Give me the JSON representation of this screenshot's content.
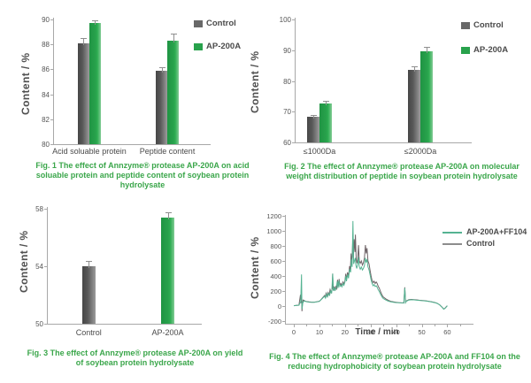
{
  "page": {
    "background": "#ffffff"
  },
  "colors": {
    "caption_green": "#3aa64a",
    "control_bar_dark": "#474747",
    "control_bar_light": "#9c9c9c",
    "ap200a_green": "#28a24c",
    "ap200a_green_light": "#83cb95",
    "legend_control_gray": "#686868",
    "teal_line": "#55b392",
    "control_line": "#6e6367",
    "axis_gray": "#a8a8a8",
    "error_bar_gray": "#8f8f8f"
  },
  "chart_data": [
    {
      "type": "bar",
      "title": "",
      "ylabel": "Content / %",
      "xlabel": "",
      "ylim": [
        80,
        90
      ],
      "yticks": [
        80,
        82,
        84,
        86,
        88,
        90
      ],
      "categories": [
        "Acid soluable protein",
        "Peptide content"
      ],
      "series": [
        {
          "name": "Control",
          "values": [
            88.1,
            85.9
          ],
          "errors": [
            0.4,
            0.3
          ]
        },
        {
          "name": "AP-200A",
          "values": [
            89.7,
            88.3
          ],
          "errors": [
            0.2,
            0.55
          ]
        }
      ],
      "legend": [
        {
          "label": "Control",
          "swatch": "control"
        },
        {
          "label": "AP-200A",
          "swatch": "green"
        }
      ],
      "caption": "Fig. 1  The effect of Annzyme® protease AP-200A on acid soluable protein and peptide content of soybean protein hydrolysate"
    },
    {
      "type": "bar",
      "title": "",
      "ylabel": "Content / %",
      "xlabel": "",
      "ylim": [
        60,
        100
      ],
      "yticks": [
        60,
        70,
        80,
        90,
        100
      ],
      "categories": [
        "≤1000Da",
        "≤2000Da"
      ],
      "series": [
        {
          "name": "Control",
          "values": [
            68.3,
            83.5
          ],
          "errors": [
            0.5,
            1.2
          ]
        },
        {
          "name": "AP-200A",
          "values": [
            72.8,
            89.5
          ],
          "errors": [
            0.7,
            1.7
          ]
        }
      ],
      "legend": [
        {
          "label": "Control",
          "swatch": "control"
        },
        {
          "label": "AP-200A",
          "swatch": "green"
        }
      ],
      "caption": "Fig. 2  The effect of Annzyme® protease AP-200A on molecular weight distribution of peptide in soybean protein hydrolysate"
    },
    {
      "type": "bar",
      "title": "",
      "ylabel": "Content / %",
      "xlabel": "",
      "ylim": [
        50,
        58
      ],
      "yticks": [
        50,
        54,
        58
      ],
      "categories": [
        "Control",
        "AP-200A"
      ],
      "series": [
        {
          "name": "Control",
          "values": [
            54.0,
            null
          ],
          "errors": [
            0.4,
            null
          ]
        },
        {
          "name": "AP-200A",
          "values": [
            null,
            57.4
          ],
          "errors": [
            null,
            0.35
          ]
        }
      ],
      "legend": [],
      "caption": "Fig. 3  The effect of Annzyme® protease AP-200A on yield of soybean protein hydrolysate"
    },
    {
      "type": "line",
      "title": "",
      "ylabel": "Content / %",
      "xlabel": "Time / min",
      "xlim": [
        0,
        60
      ],
      "ylim": [
        -200,
        1200
      ],
      "xticks": [
        0,
        10,
        20,
        30,
        40,
        50,
        60
      ],
      "yticks": [
        -200,
        0,
        200,
        400,
        600,
        800,
        1000,
        1200
      ],
      "legend": [
        {
          "label": "AP-200A+FF104",
          "swatch": "teal"
        },
        {
          "label": "Control",
          "swatch": "grayline"
        }
      ],
      "series": [
        {
          "name": "AP-200A+FF104",
          "color_key": "teal_line",
          "points": [
            [
              0,
              5
            ],
            [
              1,
              8
            ],
            [
              2,
              12
            ],
            [
              2.7,
              60
            ],
            [
              3,
              420
            ],
            [
              3.2,
              -40
            ],
            [
              3.5,
              40
            ],
            [
              4,
              70
            ],
            [
              5,
              58
            ],
            [
              6,
              52
            ],
            [
              7,
              50
            ],
            [
              8,
              50
            ],
            [
              9,
              55
            ],
            [
              10,
              62
            ],
            [
              11,
              95
            ],
            [
              12,
              130
            ],
            [
              12.4,
              105
            ],
            [
              12.8,
              160
            ],
            [
              13.2,
              125
            ],
            [
              13.6,
              170
            ],
            [
              14,
              145
            ],
            [
              14.4,
              200
            ],
            [
              14.8,
              170
            ],
            [
              15.2,
              430
            ],
            [
              15.5,
              200
            ],
            [
              15.8,
              240
            ],
            [
              16.2,
              210
            ],
            [
              16.6,
              240
            ],
            [
              17,
              330
            ],
            [
              17.3,
              240
            ],
            [
              17.6,
              340
            ],
            [
              18,
              260
            ],
            [
              18.4,
              280
            ],
            [
              18.8,
              255
            ],
            [
              19.2,
              300
            ],
            [
              19.6,
              275
            ],
            [
              20,
              320
            ],
            [
              20.3,
              400
            ],
            [
              20.6,
              330
            ],
            [
              21,
              420
            ],
            [
              21.4,
              370
            ],
            [
              21.8,
              490
            ],
            [
              22.2,
              450
            ],
            [
              22.5,
              620
            ],
            [
              22.8,
              520
            ],
            [
              23.1,
              1130
            ],
            [
              23.4,
              560
            ],
            [
              23.7,
              600
            ],
            [
              24,
              640
            ],
            [
              24.3,
              540
            ],
            [
              24.6,
              500
            ],
            [
              25,
              560
            ],
            [
              25.3,
              650
            ],
            [
              25.6,
              520
            ],
            [
              26,
              490
            ],
            [
              26.4,
              520
            ],
            [
              26.8,
              480
            ],
            [
              27.2,
              500
            ],
            [
              27.6,
              540
            ],
            [
              28,
              640
            ],
            [
              28.3,
              580
            ],
            [
              28.6,
              620
            ],
            [
              29,
              520
            ],
            [
              29.4,
              480
            ],
            [
              29.8,
              420
            ],
            [
              30.2,
              350
            ],
            [
              30.6,
              300
            ],
            [
              31,
              270
            ],
            [
              31.4,
              285
            ],
            [
              31.8,
              260
            ],
            [
              32.2,
              270
            ],
            [
              32.6,
              250
            ],
            [
              33,
              215
            ],
            [
              33.4,
              195
            ],
            [
              33.8,
              165
            ],
            [
              34.2,
              140
            ],
            [
              34.6,
              115
            ],
            [
              35,
              100
            ],
            [
              36,
              80
            ],
            [
              37,
              65
            ],
            [
              38,
              56
            ],
            [
              39,
              50
            ],
            [
              40,
              46
            ],
            [
              41,
              43
            ],
            [
              42,
              41
            ],
            [
              43,
              40
            ],
            [
              43.4,
              240
            ],
            [
              43.7,
              46
            ],
            [
              44,
              65
            ],
            [
              45,
              80
            ],
            [
              46,
              84
            ],
            [
              47,
              82
            ],
            [
              48,
              78
            ],
            [
              49,
              75
            ],
            [
              50,
              72
            ],
            [
              51,
              69
            ],
            [
              52,
              65
            ],
            [
              53,
              60
            ],
            [
              54,
              53
            ],
            [
              55,
              46
            ],
            [
              56,
              36
            ],
            [
              57,
              16
            ],
            [
              58,
              -18
            ],
            [
              58.6,
              -42
            ],
            [
              59.2,
              -28
            ],
            [
              60,
              3
            ]
          ]
        },
        {
          "name": "Control",
          "color_key": "control_line",
          "points": [
            [
              0,
              5
            ],
            [
              1,
              8
            ],
            [
              2,
              12
            ],
            [
              2.6,
              150
            ],
            [
              2.8,
              40
            ],
            [
              3,
              160
            ],
            [
              3.2,
              -70
            ],
            [
              3.4,
              30
            ],
            [
              3.6,
              80
            ],
            [
              4,
              75
            ],
            [
              4.5,
              65
            ],
            [
              5,
              60
            ],
            [
              6,
              55
            ],
            [
              7,
              52
            ],
            [
              8,
              52
            ],
            [
              9,
              58
            ],
            [
              10,
              65
            ],
            [
              10.5,
              80
            ],
            [
              11,
              100
            ],
            [
              11.5,
              120
            ],
            [
              12,
              140
            ],
            [
              12.3,
              110
            ],
            [
              12.6,
              170
            ],
            [
              13,
              130
            ],
            [
              13.4,
              180
            ],
            [
              13.8,
              150
            ],
            [
              14.2,
              220
            ],
            [
              14.6,
              180
            ],
            [
              15,
              230
            ],
            [
              15.2,
              430
            ],
            [
              15.4,
              210
            ],
            [
              15.7,
              260
            ],
            [
              16,
              220
            ],
            [
              16.4,
              260
            ],
            [
              16.8,
              230
            ],
            [
              17.1,
              350
            ],
            [
              17.4,
              260
            ],
            [
              17.7,
              360
            ],
            [
              18,
              280
            ],
            [
              18.4,
              300
            ],
            [
              18.8,
              270
            ],
            [
              19.2,
              320
            ],
            [
              19.6,
              290
            ],
            [
              20,
              340
            ],
            [
              20.3,
              430
            ],
            [
              20.6,
              350
            ],
            [
              21,
              450
            ],
            [
              21.4,
              390
            ],
            [
              21.8,
              530
            ],
            [
              22.1,
              480
            ],
            [
              22.4,
              700
            ],
            [
              22.7,
              560
            ],
            [
              23,
              840
            ],
            [
              23.3,
              640
            ],
            [
              23.6,
              890
            ],
            [
              23.9,
              720
            ],
            [
              24.1,
              950
            ],
            [
              24.4,
              620
            ],
            [
              24.7,
              570
            ],
            [
              25,
              640
            ],
            [
              25.3,
              810
            ],
            [
              25.6,
              600
            ],
            [
              26,
              570
            ],
            [
              26.4,
              600
            ],
            [
              26.8,
              545
            ],
            [
              27.2,
              575
            ],
            [
              27.6,
              640
            ],
            [
              28,
              810
            ],
            [
              28.3,
              700
            ],
            [
              28.6,
              770
            ],
            [
              29,
              600
            ],
            [
              29.4,
              560
            ],
            [
              29.8,
              480
            ],
            [
              30.2,
              400
            ],
            [
              30.6,
              340
            ],
            [
              31,
              310
            ],
            [
              31.4,
              330
            ],
            [
              31.8,
              300
            ],
            [
              32.2,
              320
            ],
            [
              32.6,
              300
            ],
            [
              33,
              260
            ],
            [
              33.4,
              240
            ],
            [
              33.8,
              200
            ],
            [
              34.2,
              170
            ],
            [
              34.6,
              140
            ],
            [
              35,
              120
            ],
            [
              36,
              95
            ],
            [
              37,
              75
            ],
            [
              38,
              62
            ],
            [
              39,
              55
            ],
            [
              40,
              50
            ],
            [
              41,
              46
            ],
            [
              42,
              44
            ],
            [
              43,
              42
            ],
            [
              43.4,
              250
            ],
            [
              43.7,
              50
            ],
            [
              44,
              70
            ],
            [
              45,
              85
            ],
            [
              46,
              88
            ],
            [
              47,
              86
            ],
            [
              48,
              82
            ],
            [
              49,
              78
            ],
            [
              50,
              75
            ],
            [
              51,
              72
            ],
            [
              52,
              68
            ],
            [
              53,
              62
            ],
            [
              54,
              55
            ],
            [
              55,
              48
            ],
            [
              56,
              38
            ],
            [
              57,
              18
            ],
            [
              58,
              -15
            ],
            [
              58.6,
              -40
            ],
            [
              59.2,
              -25
            ],
            [
              60,
              5
            ]
          ]
        }
      ],
      "caption": "Fig. 4  The effect of Annzyme® protease AP-200A  and FF104 on the reducing hydrophobicity of soybean protein hydrolysate"
    }
  ]
}
